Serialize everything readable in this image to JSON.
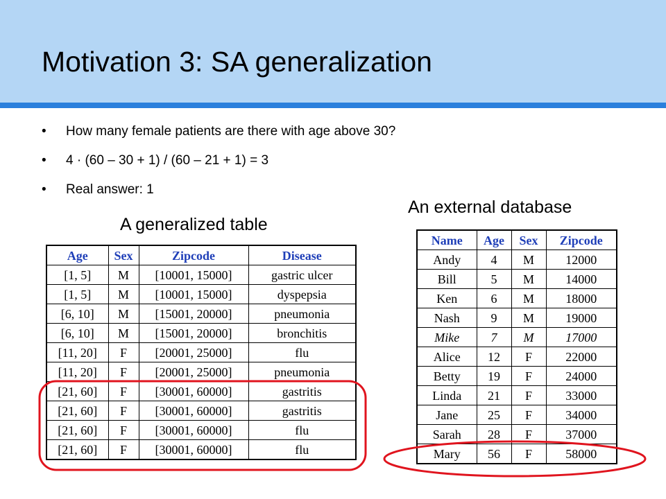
{
  "title": "Motivation 3: SA generalization",
  "bullets": [
    "How many female patients are there with age above 30?",
    "4 · (60 – 30 + 1) / (60 – 21 + 1) = 3",
    "Real answer: 1"
  ],
  "bullet_glyph": "•",
  "generalized": {
    "caption": "A generalized  table",
    "headers": [
      "Age",
      "Sex",
      "Zipcode",
      "Disease"
    ],
    "rows": [
      [
        "[1, 5]",
        "M",
        "[10001, 15000]",
        "gastric ulcer"
      ],
      [
        "[1, 5]",
        "M",
        "[10001, 15000]",
        "dyspepsia"
      ],
      [
        "[6, 10]",
        "M",
        "[15001, 20000]",
        "pneumonia"
      ],
      [
        "[6, 10]",
        "M",
        "[15001, 20000]",
        "bronchitis"
      ],
      [
        "[11, 20]",
        "F",
        "[20001, 25000]",
        "flu"
      ],
      [
        "[11, 20]",
        "F",
        "[20001, 25000]",
        "pneumonia"
      ],
      [
        "[21, 60]",
        "F",
        "[30001, 60000]",
        "gastritis"
      ],
      [
        "[21, 60]",
        "F",
        "[30001, 60000]",
        "gastritis"
      ],
      [
        "[21, 60]",
        "F",
        "[30001, 60000]",
        "flu"
      ],
      [
        "[21, 60]",
        "F",
        "[30001, 60000]",
        "flu"
      ]
    ]
  },
  "external": {
    "caption": "An external  database",
    "headers": [
      "Name",
      "Age",
      "Sex",
      "Zipcode"
    ],
    "rows": [
      [
        "Andy",
        "4",
        "M",
        "12000"
      ],
      [
        "Bill",
        "5",
        "M",
        "14000"
      ],
      [
        "Ken",
        "6",
        "M",
        "18000"
      ],
      [
        "Nash",
        "9",
        "M",
        "19000"
      ],
      [
        "Mike",
        "7",
        "M",
        "17000"
      ],
      [
        "Alice",
        "12",
        "F",
        "22000"
      ],
      [
        "Betty",
        "19",
        "F",
        "24000"
      ],
      [
        "Linda",
        "21",
        "F",
        "33000"
      ],
      [
        "Jane",
        "25",
        "F",
        "34000"
      ],
      [
        "Sarah",
        "28",
        "F",
        "37000"
      ],
      [
        "Mary",
        "56",
        "F",
        "58000"
      ]
    ],
    "italic_row": "Mike"
  },
  "colors": {
    "header_band": "#b4d6f5",
    "header_rule": "#2a7fdc",
    "table_header_text": "#1f3fb8",
    "highlight_ring": "#e0141e"
  }
}
